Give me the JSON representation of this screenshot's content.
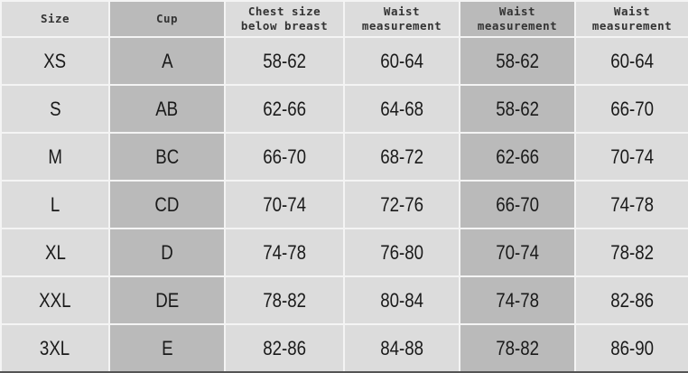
{
  "columns": [
    "Size",
    "Cup",
    "Chest size below breast",
    "Waist measurement",
    "Waist measurement",
    "Waist measurement"
  ],
  "rows": [
    [
      "XS",
      "A",
      "58-62",
      "60-64",
      "58-62",
      "60-64"
    ],
    [
      "S",
      "AB",
      "62-66",
      "64-68",
      "58-62",
      "66-70"
    ],
    [
      "M",
      "BC",
      "66-70",
      "68-72",
      "62-66",
      "70-74"
    ],
    [
      "L",
      "CD",
      "70-74",
      "72-76",
      "66-70",
      "74-78"
    ],
    [
      "XL",
      "D",
      "74-78",
      "76-80",
      "70-74",
      "78-82"
    ],
    [
      "XXL",
      "DE",
      "78-82",
      "80-84",
      "74-78",
      "82-86"
    ],
    [
      "3XL",
      "E",
      "82-86",
      "84-88",
      "78-82",
      "86-90"
    ]
  ],
  "colors": {
    "light_cell": "#dcdcdc",
    "dark_cell": "#bababa",
    "grid": "#f4f4f4"
  }
}
